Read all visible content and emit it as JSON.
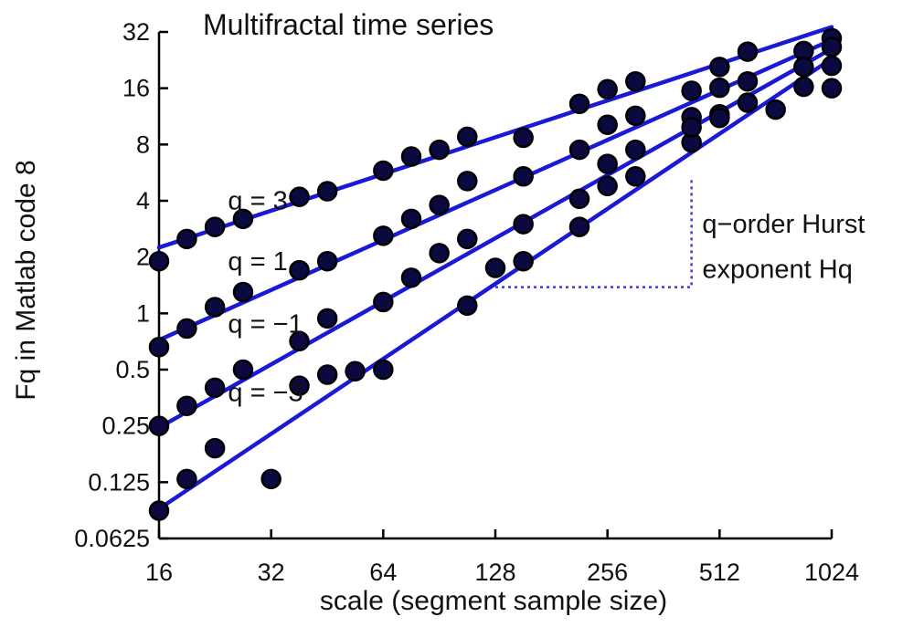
{
  "chart_data": {
    "type": "scatter",
    "title": "Multifractal time series",
    "xlabel": "scale (segment sample size)",
    "ylabel": "Fq in Matlab code 8",
    "x_scale": "log2",
    "y_scale": "log2",
    "xlim": [
      16,
      1024
    ],
    "ylim": [
      0.0625,
      32
    ],
    "x_ticks": [
      "16",
      "32",
      "64",
      "128",
      "256",
      "512",
      "1024"
    ],
    "y_ticks": [
      "0.0625",
      "0.125",
      "0.25",
      "0.5",
      "1",
      "2",
      "4",
      "8",
      "16",
      "32"
    ],
    "grid": false,
    "colors": {
      "line": "#1a1ad6",
      "marker_fill": "#0a0a40",
      "marker_edge": "#000000",
      "hurst_guide": "#3a3af0"
    },
    "x": [
      16,
      19,
      22.6,
      26.9,
      32,
      38.1,
      45.3,
      53.8,
      64,
      76.1,
      90.5,
      107.6,
      128,
      152.2,
      181,
      215.3,
      256,
      304.4,
      362,
      430.5,
      512,
      608.9,
      724.1,
      861.1,
      1024
    ],
    "series": [
      {
        "name": "q = 3",
        "values": [
          1.9,
          2.5,
          2.9,
          3.2,
          4.2,
          4.5,
          5.8,
          6.9,
          7.5,
          8.8,
          8.7,
          13.2,
          15.8,
          17.4,
          15.5,
          20.8,
          25.1,
          25.3,
          29.6
        ]
      },
      {
        "name": "q = 1",
        "values": [
          0.66,
          0.83,
          1.08,
          1.3,
          1.7,
          1.9,
          2.6,
          3.2,
          3.8,
          5.1,
          5.4,
          7.5,
          10.2,
          11.4,
          11.2,
          16.1,
          17.4,
          20.8,
          26.6
        ]
      },
      {
        "name": "q = -1",
        "values": [
          0.25,
          0.32,
          0.4,
          0.5,
          0.71,
          0.94,
          1.15,
          1.55,
          2.1,
          2.5,
          3.0,
          4.1,
          6.3,
          7.5,
          8.2,
          11.6,
          13.4,
          16.3,
          21.1
        ]
      },
      {
        "name": "q = -3",
        "values": [
          0.088,
          0.13,
          0.19,
          0.13,
          0.41,
          0.47,
          0.49,
          0.5,
          1.1,
          1.75,
          1.9,
          2.9,
          4.8,
          5.4,
          9.9,
          11.1,
          12.3,
          16.0
        ]
      }
    ],
    "series_x": [
      [
        16,
        19,
        22.6,
        26.9,
        38.1,
        45.3,
        64,
        76.1,
        90.5,
        107.6,
        152.2,
        215.3,
        256,
        304.4,
        430.5,
        512,
        608.9,
        861.1,
        1024
      ],
      [
        16,
        19,
        22.6,
        26.9,
        38.1,
        45.3,
        64,
        76.1,
        90.5,
        107.6,
        152.2,
        215.3,
        256,
        304.4,
        430.5,
        512,
        608.9,
        861.1,
        1024
      ],
      [
        16,
        19,
        22.6,
        26.9,
        38.1,
        45.3,
        64,
        76.1,
        90.5,
        107.6,
        152.2,
        215.3,
        256,
        304.4,
        430.5,
        512,
        608.9,
        861.1,
        1024
      ],
      [
        16,
        19,
        22.6,
        32,
        38.1,
        45.3,
        53.8,
        64,
        107.6,
        128,
        152.2,
        215.3,
        256,
        304.4,
        430.5,
        512,
        724.1,
        1024
      ]
    ],
    "fit_lines": [
      {
        "name": "q = 3",
        "x": [
          16,
          1024
        ],
        "y": [
          2.25,
          34
        ]
      },
      {
        "name": "q = 1",
        "x": [
          16,
          1024
        ],
        "y": [
          0.72,
          29
        ]
      },
      {
        "name": "q = -1",
        "x": [
          16,
          1024
        ],
        "y": [
          0.245,
          26
        ]
      },
      {
        "name": "q = -3",
        "x": [
          16,
          1024
        ],
        "y": [
          0.09,
          23
        ]
      }
    ],
    "hurst_guide": {
      "x": [
        128,
        430.5
      ],
      "y": [
        1.38,
        5.4
      ]
    },
    "annotations": [
      {
        "text": "q = 3",
        "x": 24.5,
        "y": 3.6
      },
      {
        "text": "q = 1",
        "x": 24.5,
        "y": 1.7
      },
      {
        "text": "q = −1",
        "x": 24.5,
        "y": 0.79
      },
      {
        "text": "q = −3",
        "x": 24.5,
        "y": 0.34
      },
      {
        "text": "q−order Hurst",
        "x": 460,
        "y": 2.7
      },
      {
        "text": "exponent Hq",
        "x": 460,
        "y": 1.55
      }
    ]
  }
}
